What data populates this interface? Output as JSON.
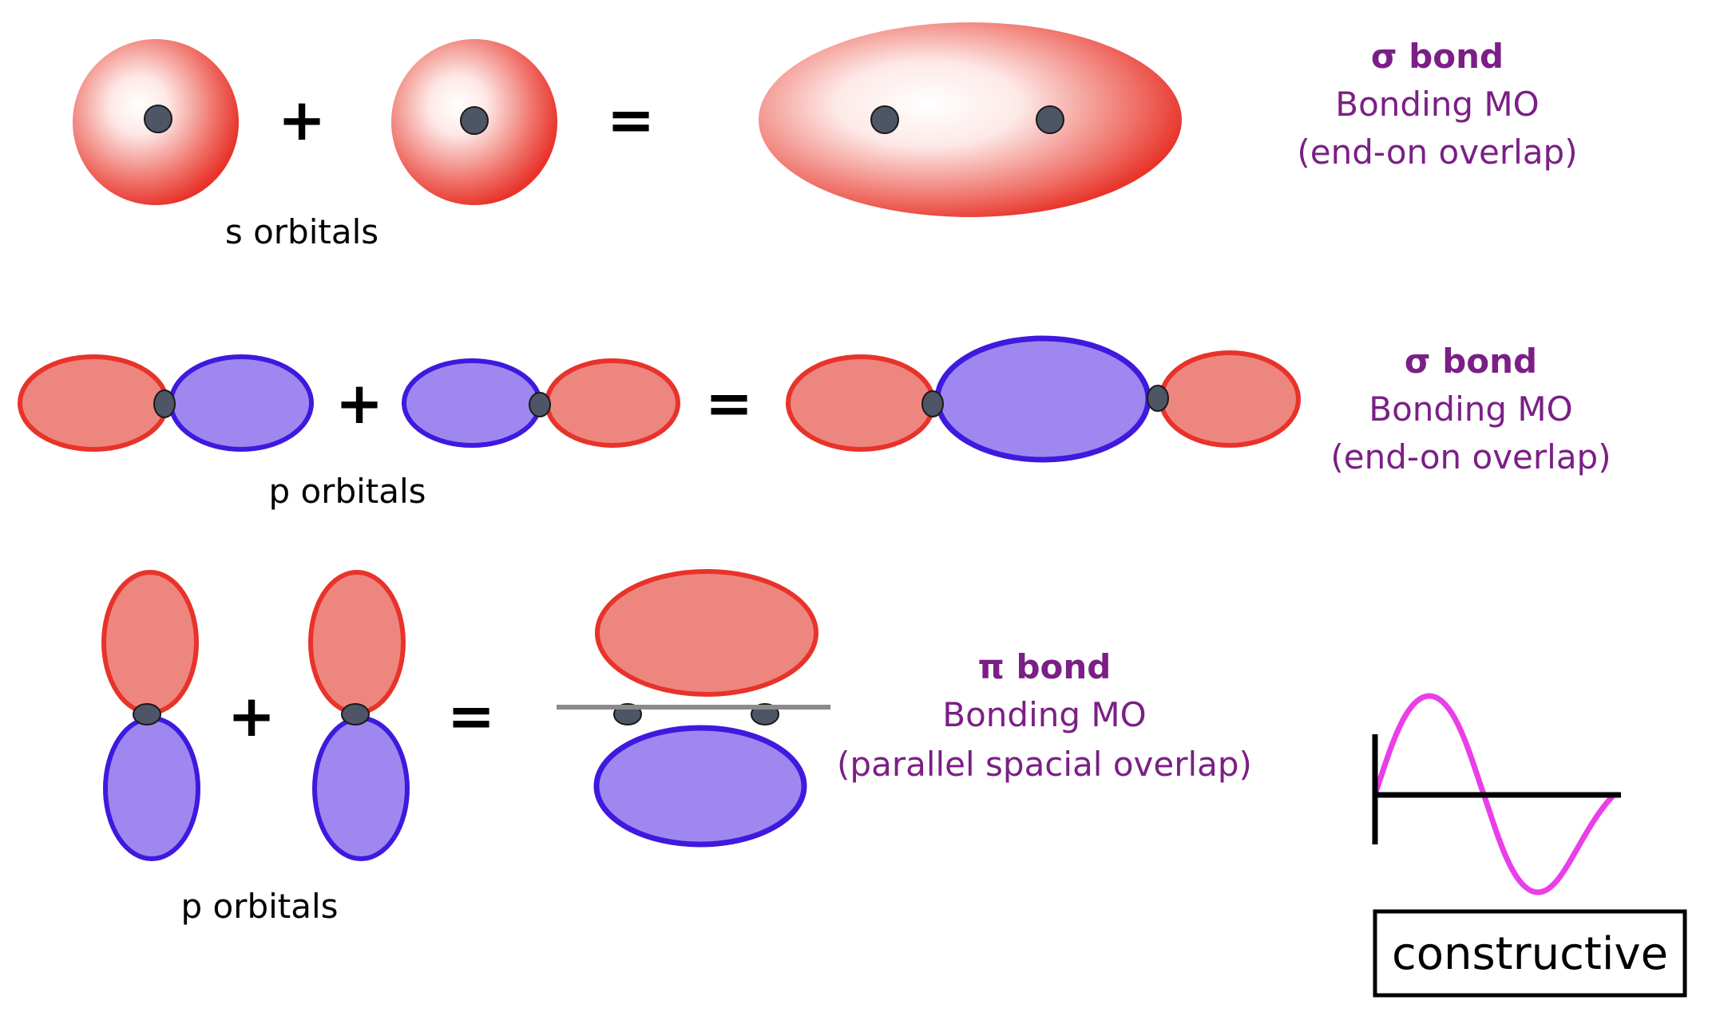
{
  "colors": {
    "red_stroke": "#e8332a",
    "red_fill": "#ee8680",
    "blue_stroke": "#3f19de",
    "blue_fill": "#9e88ef",
    "nucleus": "#4d5566",
    "axis_gray": "#8a8a8a",
    "label_purple": "#7b1f86",
    "wave_magenta": "#ea3ee8"
  },
  "operators": {
    "plus": "+",
    "equals": "="
  },
  "row_s": {
    "caption": "s orbitals",
    "bond": {
      "title": "σ bond",
      "line1": "Bonding MO",
      "line2": "(end-on overlap)"
    }
  },
  "row_p_axial": {
    "caption": "p orbitals",
    "bond": {
      "title": "σ bond",
      "line1": "Bonding MO",
      "line2": "(end-on overlap)"
    }
  },
  "row_p_parallel": {
    "caption": "p orbitals",
    "bond": {
      "title": "π bond",
      "line1": "Bonding MO",
      "line2": "(parallel spacial overlap)"
    }
  },
  "interference": {
    "label": "constructive"
  }
}
